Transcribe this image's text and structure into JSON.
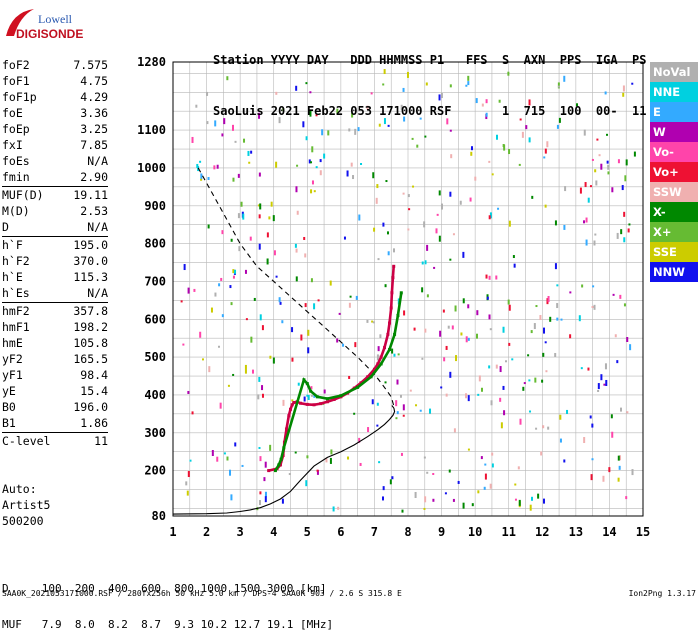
{
  "logo": {
    "line1": "Lowell",
    "line2": "DIGISONDE"
  },
  "header": {
    "row1": "Station YYYY DAY   DDD HHMMSS P1   FFS  S  AXN  PPS  IGA  PS",
    "row2": "SaoLuis 2021 Feb22 053 171000 RSF       1  715  100  00-  11"
  },
  "params": [
    {
      "label": "foF2",
      "value": "7.575"
    },
    {
      "label": "foF1",
      "value": "4.75"
    },
    {
      "label": "foF1p",
      "value": "4.29"
    },
    {
      "label": "foE",
      "value": "3.36"
    },
    {
      "label": "foEp",
      "value": "3.25"
    },
    {
      "label": "fxI",
      "value": "7.85"
    },
    {
      "label": "foEs",
      "value": "N/A"
    },
    {
      "label": "fmin",
      "value": "2.90"
    },
    {
      "label": "MUF(D)",
      "value": "19.11",
      "sep": true
    },
    {
      "label": "M(D)",
      "value": "2.53"
    },
    {
      "label": "D",
      "value": "N/A"
    },
    {
      "label": "h`F",
      "value": "195.0",
      "sep": true
    },
    {
      "label": "h`F2",
      "value": "370.0"
    },
    {
      "label": "h`E",
      "value": "115.3"
    },
    {
      "label": "h`Es",
      "value": "N/A"
    },
    {
      "label": "hmF2",
      "value": "357.8",
      "sep": true
    },
    {
      "label": "hmF1",
      "value": "198.2"
    },
    {
      "label": "hmE",
      "value": "105.8"
    },
    {
      "label": "yF2",
      "value": "165.5"
    },
    {
      "label": "yF1",
      "value": "98.4"
    },
    {
      "label": "yE",
      "value": "15.4"
    },
    {
      "label": "B0",
      "value": "196.0"
    },
    {
      "label": "B1",
      "value": "1.86"
    },
    {
      "label": "C-level",
      "value": "11",
      "sep": true
    }
  ],
  "auto": {
    "line1": "Auto:",
    "line2": "Artist5",
    "line3": "500200"
  },
  "legend": [
    {
      "label": "NoVal",
      "color": "#b0b0b0"
    },
    {
      "label": "NNE",
      "color": "#00d0e0"
    },
    {
      "label": "E",
      "color": "#33aaff"
    },
    {
      "label": "W",
      "color": "#b000b0"
    },
    {
      "label": "Vo-",
      "color": "#ff44aa"
    },
    {
      "label": "Vo+",
      "color": "#ee1133"
    },
    {
      "label": "SSW",
      "color": "#f0b0b0"
    },
    {
      "label": "X-",
      "color": "#008800"
    },
    {
      "label": "X+",
      "color": "#66bb33"
    },
    {
      "label": "SSE",
      "color": "#cccc00"
    },
    {
      "label": "NNW",
      "color": "#1111ee"
    }
  ],
  "dmuf": {
    "row1": "D     100  200  400  600  800 1000 1500 3000 [km]",
    "row2": "MUF   7.9  8.0  8.2  8.7  9.3 10.2 12.7 19.1 [MHz]"
  },
  "footer": {
    "left": "SAA0K_2021053171000.RSF / 280fx256h 50 kHz 5.0 km / DPS-4 SAA0K 903 / 2.6 S 315.8 E",
    "right": "Ion2Png 1.3.17"
  },
  "chart_data": {
    "type": "scatter",
    "xlim": [
      1,
      15
    ],
    "ylim": [
      80,
      1280
    ],
    "xticks": [
      "1",
      "2",
      "3",
      "4",
      "5",
      "6",
      "7",
      "8",
      "9",
      "10",
      "11",
      "12",
      "13",
      "14",
      "15"
    ],
    "yticks": [
      "80",
      "200",
      "300",
      "400",
      "500",
      "600",
      "700",
      "800",
      "900",
      "1000",
      "1100",
      "1280"
    ],
    "grid": true,
    "series": [
      {
        "style": "solid",
        "x": [
          1.0,
          2.0,
          2.6,
          3.0,
          3.3,
          3.6,
          3.9,
          4.2,
          4.5,
          4.8,
          5.2,
          5.6,
          6.0,
          6.4,
          6.8,
          7.1,
          7.3,
          7.45,
          7.55,
          7.6,
          7.58,
          7.52
        ],
        "y": [
          85,
          86,
          88,
          92,
          96,
          102,
          112,
          125,
          145,
          175,
          212,
          235,
          250,
          268,
          290,
          308,
          322,
          335,
          346,
          356,
          365,
          372
        ]
      },
      {
        "style": "dashed",
        "x": [
          1.75,
          2.0,
          2.5,
          3.0,
          3.5,
          4.0,
          4.5,
          5.0,
          5.5,
          6.0,
          6.5,
          7.0,
          7.3,
          7.5,
          7.575
        ],
        "y": [
          1000,
          960,
          880,
          800,
          740,
          700,
          660,
          620,
          580,
          540,
          500,
          455,
          420,
          395,
          372
        ]
      },
      {
        "style": "trace",
        "color": "#cc0044",
        "x": [
          3.85,
          4.1,
          4.2,
          4.28,
          4.32,
          4.38,
          4.45,
          4.5,
          4.55,
          4.6,
          4.7,
          4.8,
          5.0,
          5.2,
          5.4,
          5.6,
          5.8,
          6.0,
          6.2,
          6.4,
          6.6,
          6.8,
          7.0,
          7.1,
          7.2,
          7.3,
          7.4,
          7.45,
          7.5,
          7.52,
          7.55,
          7.575
        ],
        "y": [
          200,
          205,
          215,
          240,
          275,
          310,
          345,
          362,
          374,
          380,
          382,
          378,
          375,
          374,
          377,
          382,
          388,
          395,
          405,
          418,
          432,
          448,
          468,
          482,
          500,
          525,
          560,
          590,
          630,
          670,
          710,
          740
        ]
      },
      {
        "style": "trace",
        "color": "#008800",
        "x": [
          4.05,
          4.15,
          4.22,
          4.3,
          4.9,
          5.0,
          5.1,
          5.3,
          5.6,
          6.0,
          6.5,
          6.9,
          7.2,
          7.45,
          7.6,
          7.7,
          7.8
        ],
        "y": [
          200,
          215,
          230,
          260,
          440,
          430,
          410,
          395,
          390,
          398,
          420,
          448,
          482,
          520,
          560,
          610,
          670
        ]
      }
    ]
  }
}
